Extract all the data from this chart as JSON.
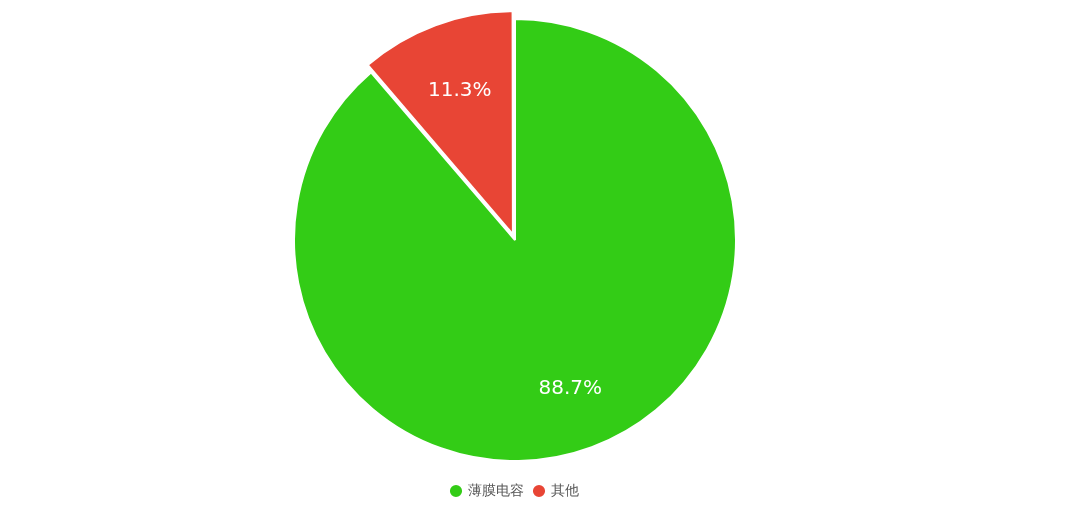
{
  "chart_data": {
    "type": "pie",
    "categories": [
      "薄膜电容",
      "其他"
    ],
    "values": [
      88.7,
      11.3
    ],
    "colors": [
      "#33cc16",
      "#e84535"
    ],
    "value_labels": [
      "88.7%",
      "11.3%"
    ],
    "legend": "bottom"
  }
}
